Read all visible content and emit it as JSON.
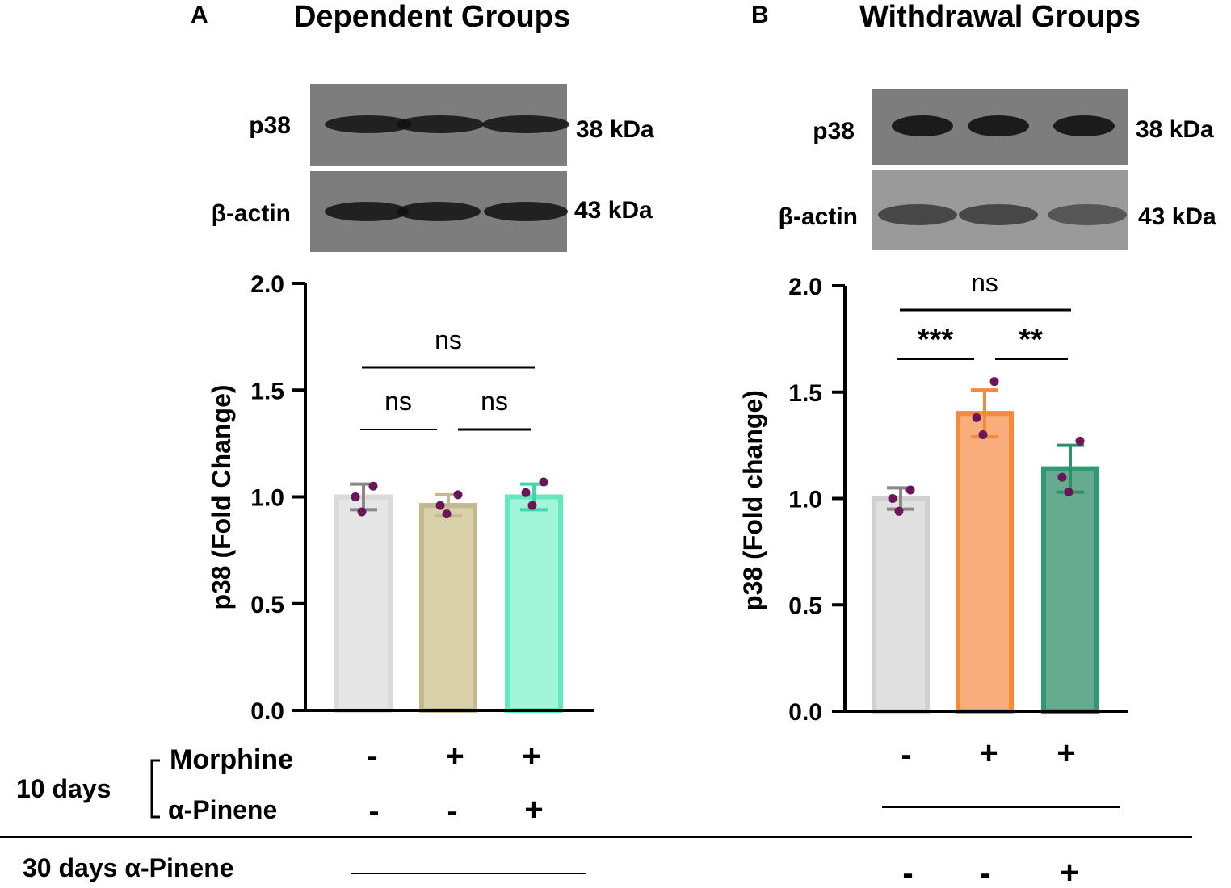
{
  "panels": [
    {
      "letter": "A",
      "title": "Dependent Groups",
      "blots": [
        {
          "label": "p38",
          "size": "38 kDa",
          "band_intensity": [
            0.85,
            0.85,
            0.85
          ]
        },
        {
          "label": "β-actin",
          "size": "43 kDa",
          "band_intensity": [
            0.85,
            0.85,
            0.85
          ]
        }
      ],
      "sig": [
        {
          "text": "ns"
        },
        {
          "text": "ns"
        },
        {
          "text": "ns"
        }
      ],
      "morphine_signs": [
        "-",
        "+",
        "+"
      ],
      "pinene10_signs": [
        "-",
        "-",
        "+"
      ]
    },
    {
      "letter": "B",
      "title": "Withdrawal Groups",
      "blots": [
        {
          "label": "p38",
          "size": "38 kDa",
          "band_intensity": [
            0.9,
            0.9,
            0.9
          ]
        },
        {
          "label": "β-actin",
          "size": "43 kDa",
          "band_intensity": [
            0.6,
            0.6,
            0.5
          ]
        }
      ],
      "sig": [
        {
          "text": "ns"
        },
        {
          "text": "***"
        },
        {
          "text": "**"
        }
      ],
      "morphine_signs": [
        "-",
        "+",
        "+"
      ],
      "pinene30_signs": [
        "-",
        "-",
        "+"
      ]
    }
  ],
  "treatment_labels": {
    "ten_days": "10 days",
    "morphine": "Morphine",
    "pinene": "α-Pinene",
    "thirty_days": "30 days α-Pinene"
  },
  "chart_data": [
    {
      "type": "bar",
      "title": "Dependent Groups",
      "ylabel": "p38 (Fold Change)",
      "ylim": [
        0,
        2.0
      ],
      "yticks": [
        "0.0",
        "0.5",
        "1.0",
        "1.5",
        "2.0"
      ],
      "yticks_values": [
        0,
        0.5,
        1.0,
        1.5,
        2.0
      ],
      "bars": [
        {
          "value": 1.0,
          "error": 0.06,
          "points": [
            0.93,
            1.0,
            1.05
          ],
          "fill": "#e6e6e6",
          "stroke": "#dadada",
          "err_color": "#888888"
        },
        {
          "value": 0.96,
          "error": 0.05,
          "points": [
            0.92,
            0.96,
            1.01
          ],
          "fill": "#d9d1aa",
          "stroke": "#c4b98e",
          "err_color": "#c4b98e"
        },
        {
          "value": 1.0,
          "error": 0.06,
          "points": [
            0.96,
            1.02,
            1.07
          ],
          "fill": "#a2f5d8",
          "stroke": "#62e9c0",
          "err_color": "#3dd8aa"
        }
      ]
    },
    {
      "type": "bar",
      "title": "Withdrawal Groups",
      "ylabel": "p38 (Fold change)",
      "ylim": [
        0,
        2.0
      ],
      "yticks": [
        "0.0",
        "0.5",
        "1.0",
        "1.5",
        "2.0"
      ],
      "yticks_values": [
        0,
        0.5,
        1.0,
        1.5,
        2.0
      ],
      "bars": [
        {
          "value": 1.0,
          "error": 0.05,
          "points": [
            0.94,
            1.0,
            1.04
          ],
          "fill": "#e0e0e0",
          "stroke": "#d0d0d0",
          "err_color": "#888888"
        },
        {
          "value": 1.4,
          "error": 0.11,
          "points": [
            1.3,
            1.38,
            1.55
          ],
          "fill": "#f9ad7d",
          "stroke": "#f48a3a",
          "err_color": "#f48a3a"
        },
        {
          "value": 1.14,
          "error": 0.11,
          "points": [
            1.03,
            1.1,
            1.27
          ],
          "fill": "#66aa90",
          "stroke": "#2f9a74",
          "err_color": "#2f8f6a"
        }
      ]
    }
  ],
  "colors": {
    "dot": "#6b1458",
    "axis": "#000000"
  }
}
